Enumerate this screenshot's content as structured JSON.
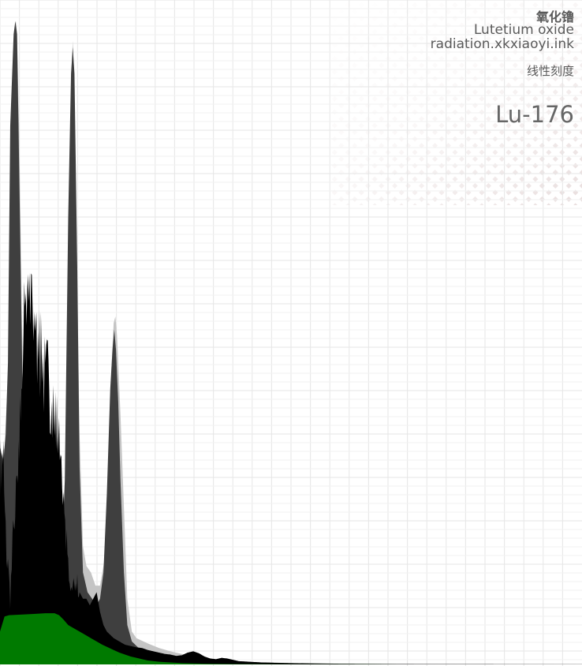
{
  "header": {
    "material_cn": "氧化镥",
    "material_en": "Lutetium oxide",
    "source": "radiation.xkxiaoyi.ink",
    "scale_label": "线性刻度",
    "isotope": "Lu-176"
  },
  "chart_data": {
    "type": "area",
    "title": "",
    "xlabel": "",
    "ylabel": "",
    "scale": "linear",
    "grid": true,
    "xlim": [
      0,
      1024
    ],
    "ylim": [
      0,
      1
    ],
    "colors": {
      "grid": "#e6e6e6",
      "grid_minor": "#f1f1f1",
      "watermark": "#e8dcdc",
      "light_envelope": "#c4c4c4",
      "dark_peaks": "#3f3f3f",
      "measured": "#000000",
      "background_fill": "#007a00"
    },
    "series": [
      {
        "values": [
          [
            0,
            0.31
          ],
          [
            8,
            0.33
          ],
          [
            16,
            0.48
          ],
          [
            22,
            0.8
          ],
          [
            26,
            0.96
          ],
          [
            28,
            0.98
          ],
          [
            30,
            0.96
          ],
          [
            34,
            0.8
          ],
          [
            38,
            0.55
          ],
          [
            44,
            0.25
          ],
          [
            52,
            0.1
          ],
          [
            60,
            0.065
          ],
          [
            70,
            0.06
          ],
          [
            80,
            0.06
          ],
          [
            90,
            0.07
          ],
          [
            100,
            0.08
          ],
          [
            108,
            0.12
          ],
          [
            116,
            0.3
          ],
          [
            122,
            0.7
          ],
          [
            126,
            0.91
          ],
          [
            128,
            0.95
          ],
          [
            130,
            0.91
          ],
          [
            134,
            0.7
          ],
          [
            140,
            0.35
          ],
          [
            146,
            0.18
          ],
          [
            152,
            0.15
          ],
          [
            160,
            0.14
          ],
          [
            168,
            0.12
          ],
          [
            176,
            0.12
          ],
          [
            184,
            0.16
          ],
          [
            190,
            0.3
          ],
          [
            196,
            0.45
          ],
          [
            200,
            0.52
          ],
          [
            203,
            0.53
          ],
          [
            206,
            0.5
          ],
          [
            212,
            0.38
          ],
          [
            218,
            0.24
          ],
          [
            224,
            0.1
          ],
          [
            232,
            0.05
          ],
          [
            240,
            0.04
          ],
          [
            260,
            0.032
          ],
          [
            280,
            0.025
          ],
          [
            300,
            0.02
          ],
          [
            320,
            0.016
          ],
          [
            340,
            0.013
          ],
          [
            360,
            0.01
          ],
          [
            380,
            0.008
          ],
          [
            420,
            0.005
          ],
          [
            460,
            0.003
          ],
          [
            500,
            0.002
          ],
          [
            560,
            0.001
          ],
          [
            640,
            0.0007
          ],
          [
            760,
            0.0004
          ],
          [
            900,
            0.0002
          ],
          [
            1024,
            0.0001
          ]
        ]
      },
      {
        "values": [
          [
            0,
            0.33
          ],
          [
            6,
            0.31
          ],
          [
            10,
            0.35
          ],
          [
            14,
            0.46
          ],
          [
            18,
            0.82
          ],
          [
            24,
            0.96
          ],
          [
            27,
            0.98
          ],
          [
            30,
            0.96
          ],
          [
            34,
            0.74
          ],
          [
            40,
            0.4
          ],
          [
            46,
            0.18
          ],
          [
            54,
            0.08
          ],
          [
            62,
            0.055
          ],
          [
            72,
            0.055
          ],
          [
            84,
            0.06
          ],
          [
            96,
            0.07
          ],
          [
            106,
            0.1
          ],
          [
            114,
            0.28
          ],
          [
            120,
            0.68
          ],
          [
            125,
            0.9
          ],
          [
            128,
            0.94
          ],
          [
            131,
            0.9
          ],
          [
            136,
            0.6
          ],
          [
            140,
            0.3
          ],
          [
            146,
            0.14
          ],
          [
            154,
            0.11
          ],
          [
            162,
            0.1
          ],
          [
            170,
            0.09
          ],
          [
            176,
            0.1
          ],
          [
            182,
            0.14
          ],
          [
            188,
            0.26
          ],
          [
            194,
            0.42
          ],
          [
            198,
            0.48
          ],
          [
            201,
            0.51
          ],
          [
            204,
            0.48
          ],
          [
            208,
            0.4
          ],
          [
            212,
            0.28
          ],
          [
            218,
            0.14
          ],
          [
            224,
            0.06
          ],
          [
            232,
            0.035
          ],
          [
            244,
            0.025
          ],
          [
            260,
            0.02
          ],
          [
            280,
            0.015
          ],
          [
            300,
            0.012
          ],
          [
            320,
            0.01
          ],
          [
            340,
            0.008
          ],
          [
            380,
            0.006
          ],
          [
            420,
            0.004
          ],
          [
            460,
            0.003
          ],
          [
            520,
            0.002
          ],
          [
            600,
            0.001
          ],
          [
            700,
            0.0006
          ],
          [
            820,
            0.0003
          ],
          [
            1024,
            0.0001
          ]
        ]
      },
      {
        "values": [
          [
            0,
            0.3
          ],
          [
            6,
            0.32
          ],
          [
            10,
            0.2
          ],
          [
            14,
            0.15
          ],
          [
            18,
            0.1
          ],
          [
            22,
            0.18
          ],
          [
            28,
            0.25
          ],
          [
            34,
            0.35
          ],
          [
            40,
            0.44
          ],
          [
            44,
            0.59
          ],
          [
            48,
            0.58
          ],
          [
            52,
            0.56
          ],
          [
            56,
            0.53
          ],
          [
            60,
            0.52
          ],
          [
            64,
            0.5
          ],
          [
            68,
            0.49
          ],
          [
            72,
            0.47
          ],
          [
            76,
            0.45
          ],
          [
            80,
            0.44
          ],
          [
            84,
            0.43
          ],
          [
            88,
            0.41
          ],
          [
            92,
            0.4
          ],
          [
            96,
            0.38
          ],
          [
            100,
            0.36
          ],
          [
            104,
            0.34
          ],
          [
            108,
            0.31
          ],
          [
            112,
            0.26
          ],
          [
            116,
            0.2
          ],
          [
            120,
            0.16
          ],
          [
            124,
            0.13
          ],
          [
            128,
            0.12
          ],
          [
            132,
            0.12
          ],
          [
            136,
            0.12
          ],
          [
            140,
            0.11
          ],
          [
            146,
            0.1
          ],
          [
            152,
            0.1
          ],
          [
            158,
            0.09
          ],
          [
            164,
            0.1
          ],
          [
            170,
            0.11
          ],
          [
            176,
            0.08
          ],
          [
            182,
            0.06
          ],
          [
            188,
            0.05
          ],
          [
            194,
            0.045
          ],
          [
            200,
            0.04
          ],
          [
            210,
            0.035
          ],
          [
            220,
            0.03
          ],
          [
            230,
            0.028
          ],
          [
            240,
            0.026
          ],
          [
            250,
            0.025
          ],
          [
            260,
            0.022
          ],
          [
            270,
            0.02
          ],
          [
            280,
            0.018
          ],
          [
            290,
            0.016
          ],
          [
            300,
            0.015
          ],
          [
            310,
            0.013
          ],
          [
            320,
            0.014
          ],
          [
            330,
            0.018
          ],
          [
            340,
            0.02
          ],
          [
            350,
            0.017
          ],
          [
            360,
            0.012
          ],
          [
            370,
            0.009
          ],
          [
            380,
            0.008
          ],
          [
            390,
            0.01
          ],
          [
            400,
            0.009
          ],
          [
            410,
            0.007
          ],
          [
            420,
            0.005
          ],
          [
            440,
            0.004
          ],
          [
            460,
            0.003
          ],
          [
            500,
            0.002
          ],
          [
            560,
            0.001
          ],
          [
            640,
            0.0006
          ],
          [
            760,
            0.0003
          ],
          [
            900,
            0.0002
          ],
          [
            1024,
            0.0001
          ]
        ]
      },
      {
        "values": [
          [
            0,
            0.05
          ],
          [
            8,
            0.073
          ],
          [
            16,
            0.075
          ],
          [
            40,
            0.076
          ],
          [
            60,
            0.077
          ],
          [
            80,
            0.078
          ],
          [
            96,
            0.078
          ],
          [
            104,
            0.075
          ],
          [
            112,
            0.068
          ],
          [
            120,
            0.06
          ],
          [
            130,
            0.055
          ],
          [
            140,
            0.05
          ],
          [
            150,
            0.045
          ],
          [
            160,
            0.04
          ],
          [
            170,
            0.035
          ],
          [
            180,
            0.03
          ],
          [
            190,
            0.026
          ],
          [
            200,
            0.022
          ],
          [
            210,
            0.018
          ],
          [
            220,
            0.015
          ],
          [
            230,
            0.012
          ],
          [
            240,
            0.01
          ],
          [
            250,
            0.008
          ],
          [
            260,
            0.006
          ],
          [
            280,
            0.004
          ],
          [
            300,
            0.003
          ],
          [
            320,
            0.002
          ],
          [
            360,
            0.001
          ],
          [
            420,
            0.0005
          ],
          [
            520,
            0.0002
          ],
          [
            640,
            0.0001
          ],
          [
            800,
            0
          ],
          [
            1024,
            0
          ]
        ]
      }
    ]
  }
}
